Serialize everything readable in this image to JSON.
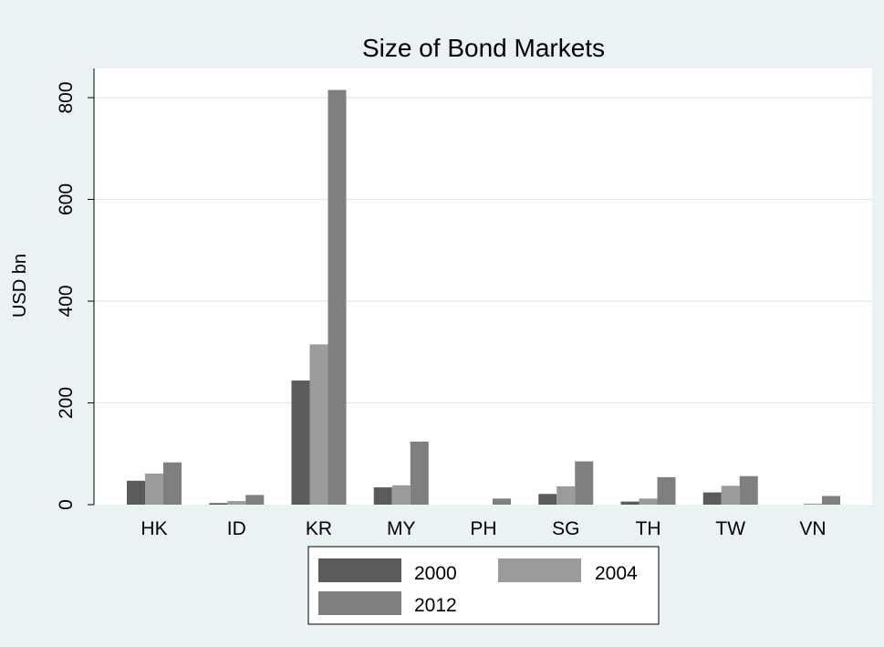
{
  "chart_data": {
    "type": "bar",
    "title": "Size of Bond Markets",
    "xlabel": "",
    "ylabel": "USD bn",
    "categories": [
      "HK",
      "ID",
      "KR",
      "MY",
      "PH",
      "SG",
      "TH",
      "TW",
      "VN"
    ],
    "series": [
      {
        "name": "2000",
        "color": "#5b5b5b",
        "values": [
          47,
          3,
          244,
          34,
          0,
          21,
          6,
          24,
          0
        ]
      },
      {
        "name": "2004",
        "color": "#9b9b9b",
        "values": [
          61,
          7,
          315,
          38,
          0,
          36,
          12,
          37,
          2
        ]
      },
      {
        "name": "2012",
        "color": "#7f7f7f",
        "values": [
          83,
          19,
          815,
          124,
          12,
          85,
          54,
          56,
          17
        ]
      }
    ],
    "y_ticks": [
      0,
      200,
      400,
      600,
      800
    ],
    "ylim": [
      0,
      860
    ],
    "grid": true,
    "legend_position": "bottom",
    "background_color": "#eaf2f3",
    "plot_background_color": "#ffffff"
  }
}
